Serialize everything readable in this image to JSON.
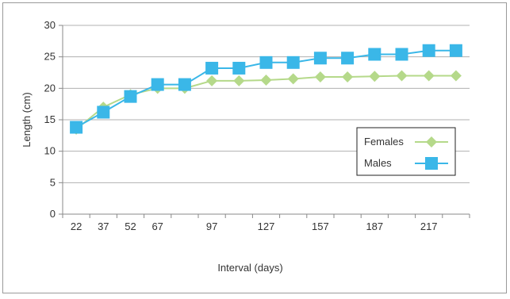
{
  "chart_data": {
    "type": "line",
    "xlabel": "Interval (days)",
    "ylabel": "Length (cm)",
    "ylim": [
      0,
      30
    ],
    "yticks": [
      0,
      5,
      10,
      15,
      20,
      25,
      30
    ],
    "x": [
      22,
      37,
      52,
      67,
      82,
      97,
      112,
      127,
      142,
      157,
      172,
      187,
      202,
      217,
      232
    ],
    "x_tick_labels": [
      "22",
      "37",
      "52",
      "67",
      "",
      "97",
      "",
      "127",
      "",
      "157",
      "",
      "187",
      "",
      "217",
      ""
    ],
    "grid": "horizontal",
    "legend_position": "right",
    "series": [
      {
        "name": "Females",
        "color": "#b5d98a",
        "marker": "diamond",
        "values": [
          13.5,
          17.0,
          19.0,
          20.0,
          20.0,
          21.2,
          21.2,
          21.3,
          21.5,
          21.8,
          21.8,
          21.9,
          22.0,
          22.0,
          22.0
        ]
      },
      {
        "name": "Males",
        "color": "#3ab7e8",
        "marker": "square",
        "values": [
          13.8,
          16.2,
          18.7,
          20.6,
          20.6,
          23.2,
          23.2,
          24.1,
          24.1,
          24.8,
          24.8,
          25.4,
          25.4,
          26.0,
          26.0
        ]
      }
    ]
  }
}
